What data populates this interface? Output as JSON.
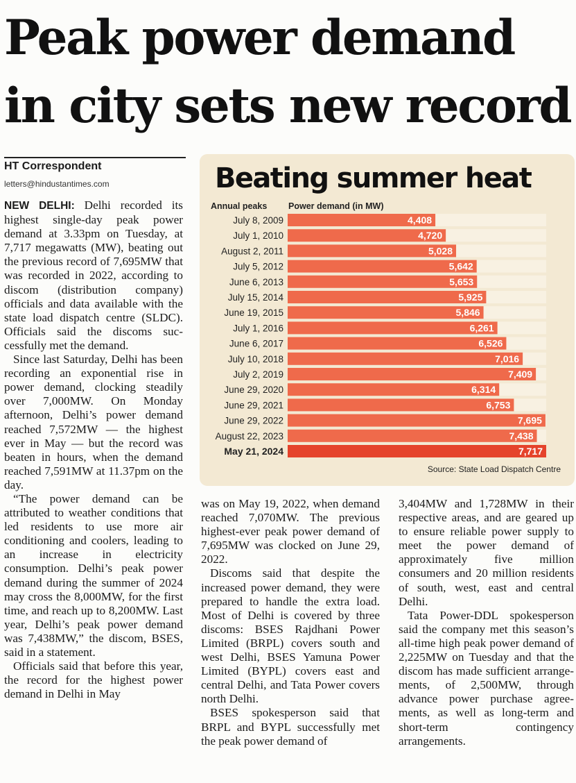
{
  "headline": {
    "line1": "Peak power demand",
    "line2": "in city sets new record"
  },
  "byline": {
    "name": "HT Correspondent",
    "email": "letters@hindustantimes.com"
  },
  "article": {
    "dateline": "NEW DELHI:",
    "col1": [
      " Delhi recorded its highest single-day peak power demand at 3.33pm on Tuesday, at 7,717 megawatts (MW), beat­ing out the previous record of 7,695MW that was recorded in 2022, according to discom (dis­tribution company) officials and data available with the state load dispatch centre (SLDC). Officials said the discoms suc­cessfully met the demand.",
      "Since last Saturday, Delhi has been recording an exponential rise in power demand, clocking steadily over 7,000MW. On Monday afternoon, Delhi’s power demand reached 7,572MW — the highest ever in May — but the record was beaten in hours, when the demand reached 7,591MW at 11.37pm on the day.",
      "“The power demand can be attributed to weather condi­tions that led residents to use more air conditioning and cool­ers, leading to an increase in electricity consumption. Delhi’s peak power demand during the summer of 2024 may cross the 8,000MW, for the first time, and reach up to 8,200MW. Last year, Delhi’s peak power demand was 7,438MW,” the discom, BSES, said in a statement.",
      "Officials said that before this year, the record for the highest power demand in Delhi in May"
    ],
    "col2": [
      "was on May 19, 2022, when demand reached 7,070MW. The previous highest-ever peak power demand of 7,695MW was clocked on June 29, 2022.",
      "Discoms said that despite the increased power demand, they were prepared to handle the extra load. Most of Delhi is cov­ered by three discoms: BSES Rajdhani Power Limited (BRPL) covers south and west Delhi, BSES Yamuna Power Limited (BYPL) covers east and central Delhi, and Tata Power covers north Delhi.",
      "BSES spokesperson said that BRPL and BYPL successfully met the peak power demand of"
    ],
    "col3": [
      "3,404MW and 1,728MW in their respective areas, and are geared up to ensure reliable power sup­ply to meet the power demand of approximately five million consumers and 20 million resi­dents of south, west, east and central Delhi.",
      "Tata Power-DDL spokesper­son said the company met this season’s all-time high peak power demand of 2,225MW on Tuesday and that the discom has made sufficient arrange­ments, of 2,500MW, through advance power purchase agree­ments, as well as long-term and short-term contingency arrangements."
    ]
  },
  "chart": {
    "title": "Beating summer heat",
    "row_header": "Annual peaks",
    "value_header": "Power demand (in MW)",
    "source": "Source: State Load Dispatch Centre"
  },
  "chart_data": {
    "type": "bar",
    "orientation": "horizontal",
    "categories": [
      "July 8, 2009",
      "July 1, 2010",
      "August 2, 2011",
      "July 5, 2012",
      "June 6, 2013",
      "July 15, 2014",
      "June 19, 2015",
      "July 1, 2016",
      "June 6, 2017",
      "July 10, 2018",
      "July 2, 2019",
      "June 29, 2020",
      "June 29, 2021",
      "June 29, 2022",
      "August 22, 2023",
      "May 21, 2024"
    ],
    "values": [
      4408,
      4720,
      5028,
      5642,
      5653,
      5925,
      5846,
      6261,
      6526,
      7016,
      7409,
      6314,
      6753,
      7695,
      7438,
      7717
    ],
    "value_labels": [
      "4,408",
      "4,720",
      "5,028",
      "5,642",
      "5,653",
      "5,925",
      "5,846",
      "6,261",
      "6,526",
      "7,016",
      "7,409",
      "6,314",
      "6,753",
      "7,695",
      "7,438",
      "7,717"
    ],
    "highlight_index": 15,
    "colors": {
      "bar": "#ef6a4b",
      "highlight": "#e5432b",
      "track": "#f8f1e2",
      "label": "#ffffff"
    },
    "xlim": [
      0,
      7717
    ],
    "grid": false
  }
}
